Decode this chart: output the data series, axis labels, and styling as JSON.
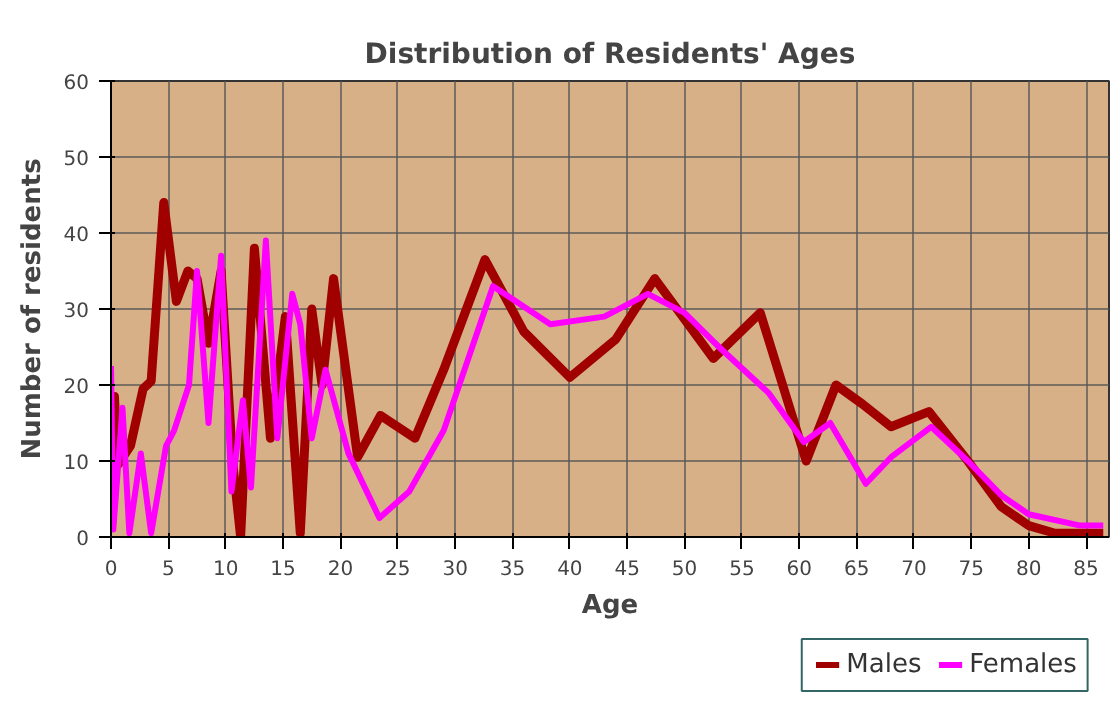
{
  "chart_data": {
    "type": "line",
    "title": "Distribution of Residents' Ages",
    "xlabel": "Age",
    "ylabel": "Number of residents",
    "xlim": [
      0,
      87
    ],
    "xticks": [
      0,
      5,
      10,
      15,
      20,
      25,
      30,
      35,
      40,
      45,
      50,
      55,
      60,
      65,
      70,
      75,
      80,
      85
    ],
    "ylim": [
      0,
      60
    ],
    "yticks": [
      0,
      10,
      20,
      30,
      40,
      50,
      60
    ],
    "grid": true,
    "legend": "bottom",
    "line_style": "solid",
    "series": [
      {
        "name": "Males",
        "color": "#a00000",
        "x": [
          0,
          0.3,
          0.6,
          1.7,
          2.8,
          3.5,
          4.6,
          5.7,
          6.7,
          7.5,
          8.5,
          9.6,
          10.6,
          11.3,
          12.5,
          13.9,
          15.2,
          16.5,
          17.5,
          18.4,
          19.4,
          21.5,
          23.5,
          26.5,
          29,
          32.6,
          36,
          40,
          44,
          47.4,
          52.5,
          56.6,
          60.6,
          63.2,
          65.5,
          68,
          71.3,
          74.7,
          77.6,
          80,
          82.3,
          86.5
        ],
        "values": [
          9,
          18.5,
          9.5,
          12,
          19.5,
          20.5,
          44,
          31,
          35,
          34,
          25.5,
          35,
          10,
          0,
          38,
          13,
          29,
          0.5,
          30,
          20,
          34,
          10.5,
          16,
          13,
          22,
          36.5,
          27,
          21,
          26,
          34,
          23.5,
          29.5,
          10,
          20,
          17.5,
          14.5,
          16.5,
          10,
          4,
          1.5,
          0.5,
          0.5
        ]
      },
      {
        "name": "Females",
        "color": "#ff00ff",
        "x": [
          0,
          0.2,
          1.0,
          1.6,
          2.6,
          3.5,
          4.8,
          5.5,
          6.8,
          7.5,
          8.5,
          9.6,
          10.5,
          11.5,
          12.2,
          13.5,
          14.5,
          15.8,
          16.5,
          17.5,
          18.7,
          20.7,
          23.4,
          26,
          29,
          33.3,
          38.3,
          43,
          46.8,
          50,
          53,
          57.3,
          60.4,
          62.7,
          65.8,
          68,
          71.5,
          74.7,
          77.6,
          80,
          84.5,
          86.5
        ],
        "values": [
          22.5,
          1,
          17,
          0.5,
          11,
          0.5,
          12,
          14,
          20,
          35,
          15,
          37,
          6,
          18,
          6.5,
          39,
          13,
          32,
          28,
          13,
          22,
          11,
          2.5,
          6,
          14,
          33,
          28,
          29,
          32,
          29.5,
          25,
          19,
          12.5,
          15,
          7,
          10.5,
          14.5,
          10,
          5.5,
          3,
          1.5,
          1.5
        ]
      }
    ]
  }
}
